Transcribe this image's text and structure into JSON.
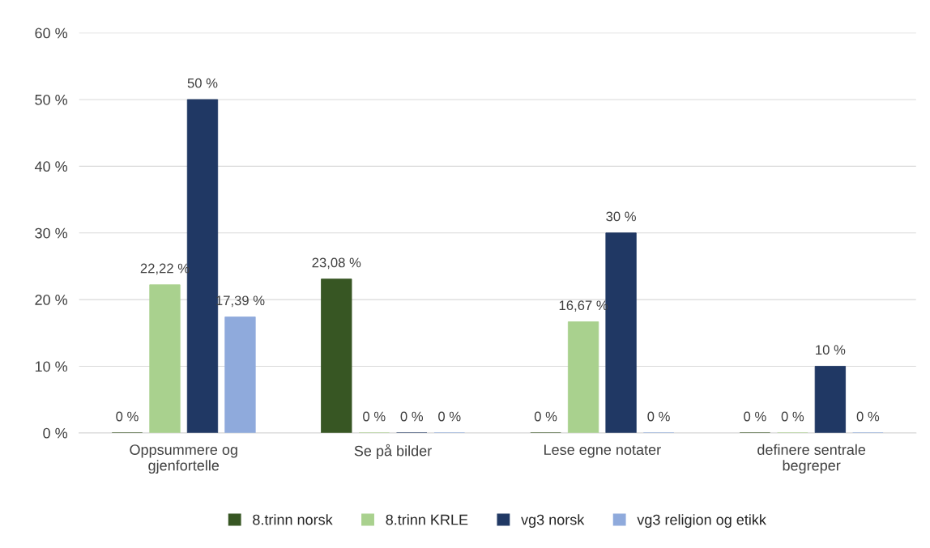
{
  "chart_data": {
    "type": "bar",
    "categories": [
      "Oppsummere og\ngjenfortelle",
      "Se på bilder",
      "Lese egne notater",
      "definere sentrale\nbegreper"
    ],
    "series": [
      {
        "name": "8.trinn norsk",
        "color": "#375623",
        "values": [
          0,
          23.08,
          0,
          0
        ],
        "value_labels": [
          "0 %",
          "23,08 %",
          "0 %",
          "0 %"
        ]
      },
      {
        "name": "8.trinn KRLE",
        "color": "#a9d18e",
        "values": [
          22.22,
          0,
          16.67,
          0
        ],
        "value_labels": [
          "22,22 %",
          "0 %",
          "16,67 %",
          "0 %"
        ]
      },
      {
        "name": "vg3 norsk",
        "color": "#203864",
        "values": [
          50,
          0,
          30,
          10
        ],
        "value_labels": [
          "50 %",
          "0 %",
          "30 %",
          "10 %"
        ]
      },
      {
        "name": "vg3 religion og etikk",
        "color": "#8faadc",
        "values": [
          17.39,
          0,
          0,
          0
        ],
        "value_labels": [
          "17,39 %",
          "0 %",
          "0 %",
          "0 %"
        ]
      }
    ],
    "ylim": [
      0,
      60
    ],
    "yticks": [
      {
        "value": 0,
        "label": "0 %"
      },
      {
        "value": 10,
        "label": "10 %"
      },
      {
        "value": 20,
        "label": "20 %"
      },
      {
        "value": 30,
        "label": "30 %"
      },
      {
        "value": 40,
        "label": "40 %"
      },
      {
        "value": 50,
        "label": "50 %"
      },
      {
        "value": 60,
        "label": "60 %"
      }
    ],
    "grid": "y",
    "legend": "bottom"
  }
}
